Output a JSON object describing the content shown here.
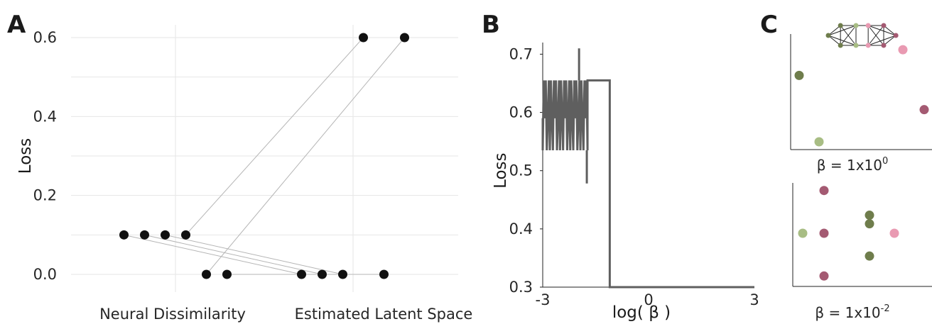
{
  "colors": {
    "points": "#111111",
    "connector": "#b5b5b5",
    "grid": "#e6e6e6",
    "trace": "#5f5f5f",
    "dark_green": "#6f7d4c",
    "light_green": "#a8bd84",
    "mauve": "#a45a72",
    "pink": "#e99ab2"
  },
  "chart_data": [
    {
      "panel": "A",
      "type": "scatter",
      "ylabel": "Loss",
      "categories": [
        "Neural Dissimilarity",
        "Estimated Latent Space"
      ],
      "yticks": [
        "0.0",
        "0.2",
        "0.4",
        "0.6"
      ],
      "ylim": [
        -0.02,
        0.65
      ],
      "grid": true,
      "neural_points": [
        {
          "offset": -0.5,
          "y": 0.1
        },
        {
          "offset": -0.3,
          "y": 0.1
        },
        {
          "offset": -0.1,
          "y": 0.1
        },
        {
          "offset": 0.1,
          "y": 0.1
        },
        {
          "offset": 0.3,
          "y": 0.0
        },
        {
          "offset": 0.5,
          "y": 0.0
        }
      ],
      "latent_points": [
        {
          "offset": -0.5,
          "y": 0.0
        },
        {
          "offset": -0.3,
          "y": 0.0
        },
        {
          "offset": -0.1,
          "y": 0.0
        },
        {
          "offset": 0.1,
          "y": 0.6
        },
        {
          "offset": 0.3,
          "y": 0.0
        },
        {
          "offset": 0.5,
          "y": 0.6
        }
      ],
      "pairs": [
        [
          0,
          0
        ],
        [
          1,
          1
        ],
        [
          2,
          2
        ],
        [
          3,
          3
        ],
        [
          4,
          5
        ],
        [
          5,
          4
        ]
      ]
    },
    {
      "panel": "B",
      "type": "line",
      "xlabel": "log( β )",
      "ylabel": "Loss",
      "xlim": [
        -3,
        3
      ],
      "ylim": [
        0.3,
        0.72
      ],
      "xticks": [
        "-3",
        "0",
        "3"
      ],
      "yticks": [
        "0.3",
        "0.4",
        "0.5",
        "0.6",
        "0.7"
      ],
      "osc_range": [
        -3,
        -1.73
      ],
      "osc_levels": [
        0.535,
        0.59,
        0.655
      ],
      "spikes": [
        {
          "x": -1.97,
          "y": 0.71
        },
        {
          "x": -1.75,
          "y": 0.478
        }
      ],
      "plateau": {
        "x0": -1.73,
        "x1": -1.1,
        "y": 0.655
      },
      "drop_x": -1.1,
      "floor": 0.3
    },
    {
      "panel": "C",
      "type": "scatter",
      "subplots": [
        {
          "label_base": "β = 1x10",
          "label_exp": "0",
          "points": [
            {
              "x": 0.04,
              "y": 0.64,
              "group": "dark_green"
            },
            {
              "x": 0.32,
              "y": 0.02,
              "group": "light_green"
            },
            {
              "x": 1.5,
              "y": 0.88,
              "group": "pink"
            },
            {
              "x": 1.8,
              "y": 0.32,
              "group": "mauve"
            }
          ]
        },
        {
          "label_base": "β = 1x10",
          "label_exp": "-2",
          "points": [
            {
              "x": 0.06,
              "y": 0.5,
              "group": "light_green"
            },
            {
              "x": 0.36,
              "y": 0.95,
              "group": "mauve"
            },
            {
              "x": 0.36,
              "y": 0.5,
              "group": "mauve"
            },
            {
              "x": 0.36,
              "y": 0.05,
              "group": "mauve"
            },
            {
              "x": 1.0,
              "y": 0.69,
              "group": "dark_green"
            },
            {
              "x": 1.0,
              "y": 0.6,
              "group": "dark_green"
            },
            {
              "x": 1.0,
              "y": 0.26,
              "group": "dark_green"
            },
            {
              "x": 1.35,
              "y": 0.5,
              "group": "pink"
            }
          ]
        }
      ],
      "graph": {
        "nodes": [
          {
            "x": 0.0,
            "y": 0.5,
            "group": "dark_green"
          },
          {
            "x": 0.22,
            "y": 0.0,
            "group": "dark_green"
          },
          {
            "x": 0.22,
            "y": 1.0,
            "group": "dark_green"
          },
          {
            "x": 0.5,
            "y": 0.0,
            "group": "light_green"
          },
          {
            "x": 0.5,
            "y": 1.0,
            "group": "light_green"
          },
          {
            "x": 0.72,
            "y": 0.0,
            "group": "pink"
          },
          {
            "x": 0.72,
            "y": 1.0,
            "group": "pink"
          },
          {
            "x": 1.0,
            "y": 0.0,
            "group": "mauve"
          },
          {
            "x": 1.0,
            "y": 1.0,
            "group": "mauve"
          },
          {
            "x": 1.22,
            "y": 0.5,
            "group": "mauve"
          }
        ],
        "edges": [
          [
            0,
            1
          ],
          [
            0,
            2
          ],
          [
            0,
            3
          ],
          [
            0,
            4
          ],
          [
            1,
            2
          ],
          [
            1,
            3
          ],
          [
            1,
            4
          ],
          [
            2,
            3
          ],
          [
            2,
            4
          ],
          [
            3,
            4
          ],
          [
            3,
            5
          ],
          [
            4,
            6
          ],
          [
            5,
            6
          ],
          [
            5,
            7
          ],
          [
            5,
            8
          ],
          [
            5,
            9
          ],
          [
            6,
            7
          ],
          [
            6,
            8
          ],
          [
            6,
            9
          ],
          [
            7,
            8
          ],
          [
            7,
            9
          ],
          [
            8,
            9
          ]
        ]
      }
    }
  ],
  "panel_letters": [
    "A",
    "B",
    "C"
  ]
}
